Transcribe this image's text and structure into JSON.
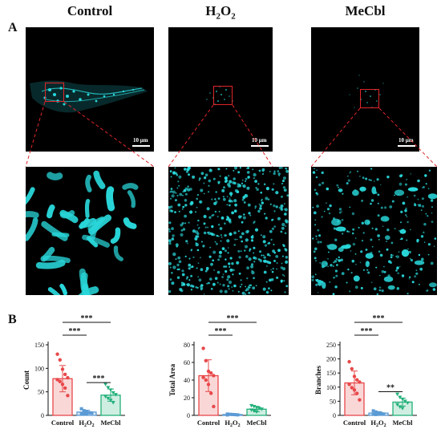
{
  "figure": {
    "panel_a_label": "A",
    "panel_b_label": "B",
    "columns": [
      {
        "title": "Control",
        "sub": ""
      },
      {
        "title": "H",
        "sub": "2",
        "title2": "O",
        "sub2": "2"
      },
      {
        "title": "MeCbl",
        "sub": ""
      }
    ],
    "scale_label": "10 μm",
    "colors": {
      "control": "#e8484a",
      "h2o2": "#5b9bd5",
      "mecbl": "#23b07a",
      "cyan": "#29d7da",
      "zoom_line": "#e0262a"
    }
  },
  "chart_data": [
    {
      "type": "bar",
      "ylabel": "Count",
      "categories": [
        "Control",
        "H2O2",
        "MeCbl"
      ],
      "values": [
        78,
        7,
        43
      ],
      "errors": [
        28,
        4,
        13
      ],
      "ylim": [
        0,
        150
      ],
      "yticks": [
        0,
        50,
        100,
        150
      ],
      "points": [
        [
          130,
          118,
          98,
          87,
          80,
          76,
          72,
          66,
          58,
          42
        ],
        [
          14,
          10,
          8,
          6,
          5,
          4,
          3,
          3
        ],
        [
          66,
          59,
          54,
          48,
          44,
          40,
          36,
          32,
          27
        ]
      ],
      "significance": [
        {
          "from": 0,
          "to": 1,
          "label": "***"
        },
        {
          "from": 0,
          "to": 2,
          "label": "***"
        },
        {
          "from": 1,
          "to": 2,
          "label": "***"
        }
      ]
    },
    {
      "type": "bar",
      "ylabel": "Total Area",
      "categories": [
        "Control",
        "H2O2",
        "MeCbl"
      ],
      "values": [
        45,
        1,
        7
      ],
      "errors": [
        18,
        0.5,
        3
      ],
      "ylim": [
        0,
        80
      ],
      "yticks": [
        0,
        20,
        40,
        60,
        80
      ],
      "points": [
        [
          76,
          62,
          50,
          48,
          45,
          43,
          40,
          35,
          25,
          10
        ],
        [
          1.5,
          1.2,
          1,
          0.8,
          0.6,
          0.5
        ],
        [
          11,
          10,
          9,
          8,
          7,
          6,
          5,
          4
        ]
      ],
      "significance": [
        {
          "from": 0,
          "to": 1,
          "label": "***"
        },
        {
          "from": 0,
          "to": 2,
          "label": "***"
        }
      ]
    },
    {
      "type": "bar",
      "ylabel": "Branches",
      "categories": [
        "Control",
        "H2O2",
        "MeCbl"
      ],
      "values": [
        115,
        8,
        47
      ],
      "errors": [
        42,
        5,
        14
      ],
      "ylim": [
        0,
        250
      ],
      "yticks": [
        0,
        50,
        100,
        150,
        200,
        250
      ],
      "points": [
        [
          190,
          165,
          138,
          126,
          118,
          110,
          98,
          90,
          78,
          55
        ],
        [
          16,
          12,
          9,
          7,
          5,
          4,
          3
        ],
        [
          75,
          64,
          57,
          50,
          44,
          38,
          30,
          25
        ]
      ],
      "significance": [
        {
          "from": 0,
          "to": 1,
          "label": "***"
        },
        {
          "from": 0,
          "to": 2,
          "label": "***"
        },
        {
          "from": 1,
          "to": 2,
          "label": "**"
        }
      ]
    }
  ]
}
